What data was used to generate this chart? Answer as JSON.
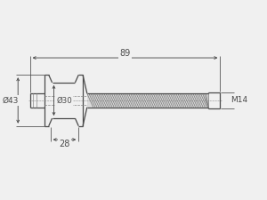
{
  "bg_color": "#f0f0f0",
  "line_color": "#4a4a4a",
  "dim_color": "#4a4a4a",
  "dim_89": "89",
  "dim_43": "Ø43",
  "dim_30": "Ø30",
  "dim_28": "28",
  "dim_M14": "M14",
  "figsize": [
    3.0,
    2.25
  ],
  "dpi": 100
}
